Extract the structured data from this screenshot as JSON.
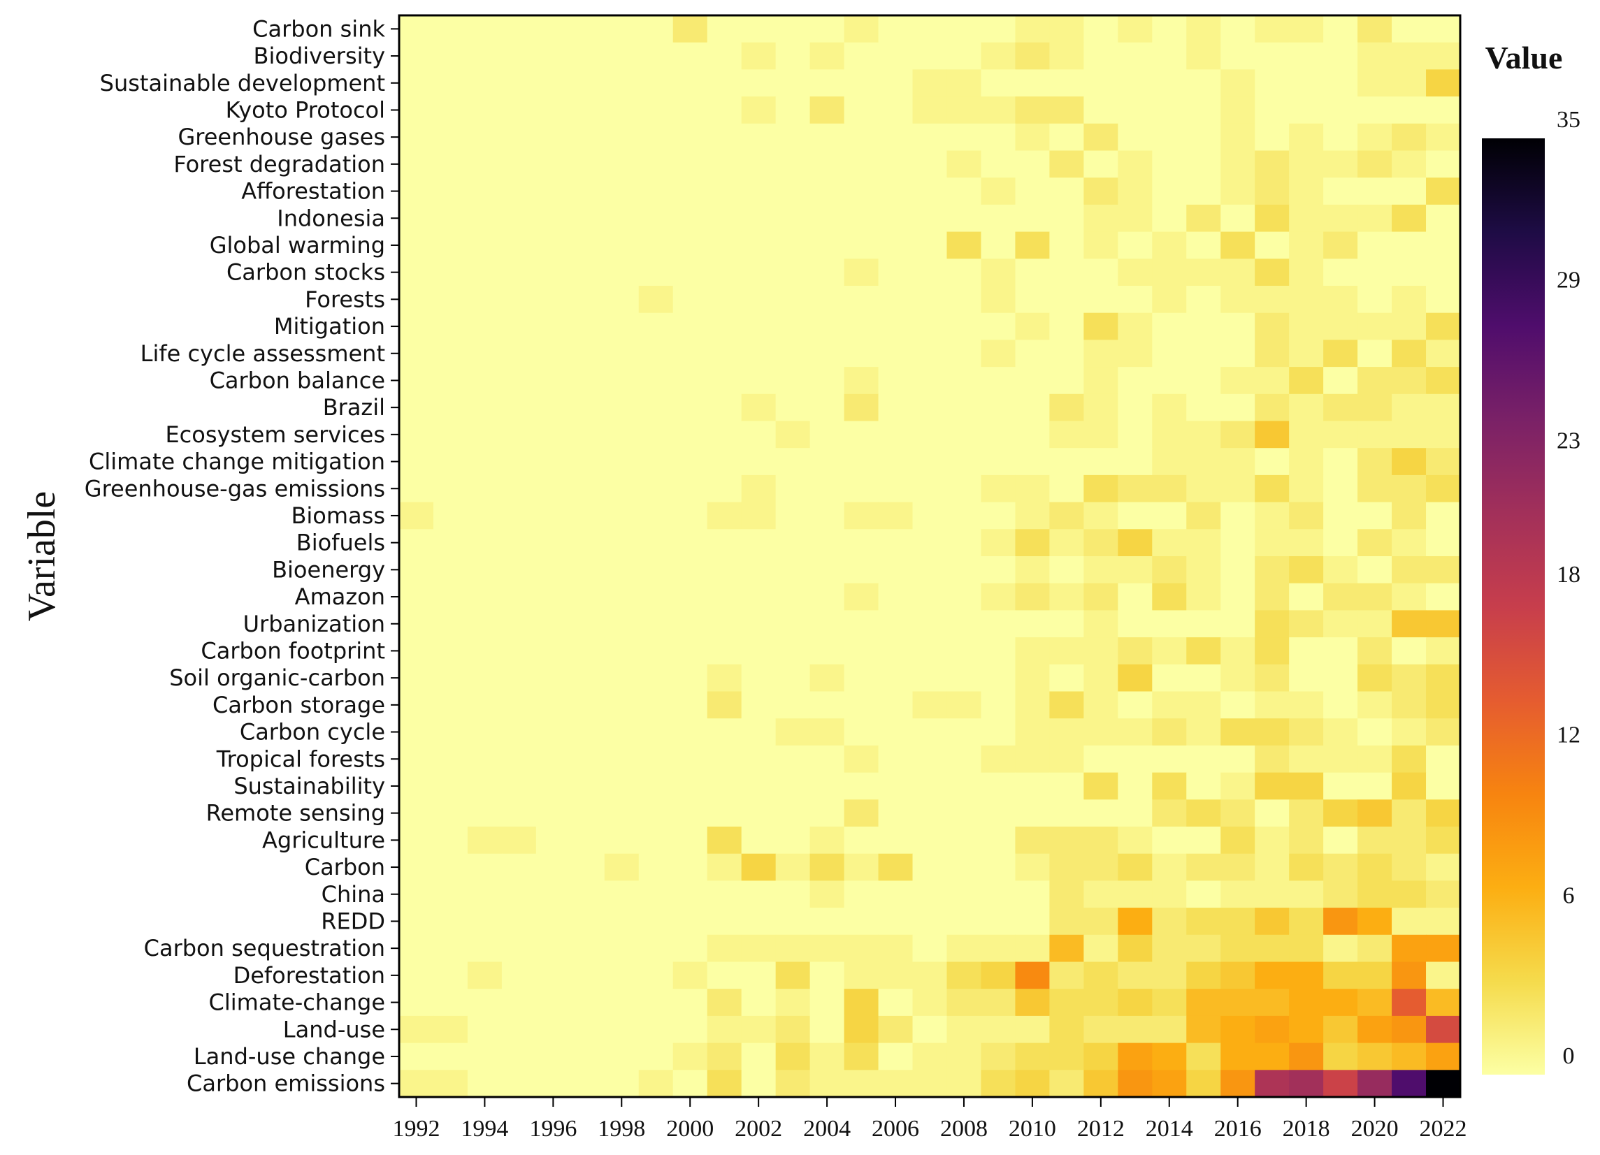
{
  "chart_data": {
    "type": "heatmap",
    "ylabel": "Variable",
    "xlabel": "",
    "x": [
      "1992",
      "1993",
      "1994",
      "1995",
      "1996",
      "1997",
      "1998",
      "1999",
      "2000",
      "2001",
      "2002",
      "2003",
      "2004",
      "2005",
      "2006",
      "2007",
      "2008",
      "2009",
      "2010",
      "2011",
      "2012",
      "2013",
      "2014",
      "2015",
      "2016",
      "2017",
      "2018",
      "2019",
      "2020",
      "2021",
      "2022"
    ],
    "x_tick_labels": [
      "1992",
      "1994",
      "1996",
      "1998",
      "2000",
      "2002",
      "2004",
      "2006",
      "2008",
      "2010",
      "2012",
      "2014",
      "2016",
      "2018",
      "2020",
      "2022"
    ],
    "y": [
      "Carbon sink",
      "Biodiversity",
      "Sustainable development",
      "Kyoto Protocol",
      "Greenhouse gases",
      "Forest degradation",
      "Afforestation",
      "Indonesia",
      "Global warming",
      "Carbon stocks",
      "Forests",
      "Mitigation",
      "Life cycle assessment",
      "Carbon balance",
      "Brazil",
      "Ecosystem services",
      "Climate change mitigation",
      "Greenhouse-gas emissions",
      "Biomass",
      "Biofuels",
      "Bioenergy",
      "Amazon",
      "Urbanization",
      "Carbon footprint",
      "Soil organic-carbon",
      "Carbon storage",
      "Carbon cycle",
      "Tropical forests",
      "Sustainability",
      "Remote sensing",
      "Agriculture",
      "Carbon",
      "China",
      "REDD",
      "Carbon sequestration",
      "Deforestation",
      "Climate-change",
      "Land-use",
      "Land-use change",
      "Carbon emissions"
    ],
    "values": [
      [
        0,
        0,
        0,
        0,
        0,
        0,
        0,
        0,
        2,
        0,
        0,
        0,
        0,
        1,
        0,
        0,
        0,
        0,
        1,
        1,
        0,
        1,
        0,
        1,
        0,
        1,
        1,
        0,
        2,
        0,
        0
      ],
      [
        0,
        0,
        0,
        0,
        0,
        0,
        0,
        0,
        0,
        0,
        1,
        0,
        1,
        0,
        0,
        0,
        0,
        1,
        2,
        1,
        0,
        0,
        0,
        1,
        0,
        0,
        0,
        0,
        1,
        1,
        1
      ],
      [
        0,
        0,
        0,
        0,
        0,
        0,
        0,
        0,
        0,
        0,
        0,
        0,
        0,
        0,
        0,
        1,
        1,
        0,
        0,
        0,
        0,
        0,
        0,
        0,
        1,
        0,
        0,
        0,
        1,
        1,
        4
      ],
      [
        0,
        0,
        0,
        0,
        0,
        0,
        0,
        0,
        0,
        0,
        1,
        0,
        2,
        0,
        0,
        1,
        1,
        1,
        2,
        2,
        0,
        0,
        0,
        0,
        1,
        0,
        0,
        0,
        0,
        0,
        0
      ],
      [
        0,
        0,
        0,
        0,
        0,
        0,
        0,
        0,
        0,
        0,
        0,
        0,
        0,
        0,
        0,
        0,
        0,
        0,
        1,
        0,
        2,
        0,
        0,
        0,
        1,
        0,
        1,
        0,
        1,
        2,
        1
      ],
      [
        0,
        0,
        0,
        0,
        0,
        0,
        0,
        0,
        0,
        0,
        0,
        0,
        0,
        0,
        0,
        0,
        1,
        0,
        0,
        2,
        0,
        1,
        0,
        0,
        1,
        2,
        1,
        1,
        2,
        1,
        0
      ],
      [
        0,
        0,
        0,
        0,
        0,
        0,
        0,
        0,
        0,
        0,
        0,
        0,
        0,
        0,
        0,
        0,
        0,
        1,
        0,
        0,
        2,
        1,
        0,
        0,
        1,
        2,
        1,
        0,
        0,
        0,
        3
      ],
      [
        0,
        0,
        0,
        0,
        0,
        0,
        0,
        0,
        0,
        0,
        0,
        0,
        0,
        0,
        0,
        0,
        0,
        0,
        0,
        0,
        1,
        1,
        0,
        2,
        0,
        3,
        1,
        1,
        1,
        3,
        0
      ],
      [
        0,
        0,
        0,
        0,
        0,
        0,
        0,
        0,
        0,
        0,
        0,
        0,
        0,
        0,
        0,
        0,
        3,
        0,
        3,
        0,
        1,
        0,
        1,
        0,
        3,
        0,
        1,
        2,
        0,
        0,
        0
      ],
      [
        0,
        0,
        0,
        0,
        0,
        0,
        0,
        0,
        0,
        0,
        0,
        0,
        0,
        1,
        0,
        0,
        0,
        1,
        0,
        0,
        0,
        1,
        1,
        1,
        1,
        3,
        1,
        0,
        0,
        0,
        0
      ],
      [
        0,
        0,
        0,
        0,
        0,
        0,
        0,
        1,
        0,
        0,
        0,
        0,
        0,
        0,
        0,
        0,
        0,
        1,
        0,
        0,
        0,
        0,
        1,
        0,
        1,
        1,
        1,
        1,
        0,
        1,
        0
      ],
      [
        0,
        0,
        0,
        0,
        0,
        0,
        0,
        0,
        0,
        0,
        0,
        0,
        0,
        0,
        0,
        0,
        0,
        0,
        1,
        0,
        3,
        1,
        0,
        0,
        0,
        2,
        1,
        1,
        1,
        1,
        3
      ],
      [
        0,
        0,
        0,
        0,
        0,
        0,
        0,
        0,
        0,
        0,
        0,
        0,
        0,
        0,
        0,
        0,
        0,
        1,
        0,
        0,
        1,
        1,
        0,
        0,
        0,
        2,
        1,
        3,
        0,
        3,
        1
      ],
      [
        0,
        0,
        0,
        0,
        0,
        0,
        0,
        0,
        0,
        0,
        0,
        0,
        0,
        1,
        0,
        0,
        0,
        0,
        0,
        0,
        1,
        0,
        0,
        0,
        1,
        1,
        3,
        0,
        2,
        2,
        3
      ],
      [
        0,
        0,
        0,
        0,
        0,
        0,
        0,
        0,
        0,
        0,
        1,
        0,
        0,
        2,
        0,
        0,
        0,
        0,
        0,
        2,
        1,
        0,
        1,
        0,
        0,
        2,
        1,
        2,
        2,
        1,
        1
      ],
      [
        0,
        0,
        0,
        0,
        0,
        0,
        0,
        0,
        0,
        0,
        0,
        1,
        0,
        0,
        0,
        0,
        0,
        0,
        0,
        1,
        1,
        0,
        1,
        1,
        2,
        5,
        1,
        1,
        1,
        1,
        1
      ],
      [
        0,
        0,
        0,
        0,
        0,
        0,
        0,
        0,
        0,
        0,
        0,
        0,
        0,
        0,
        0,
        0,
        0,
        0,
        0,
        0,
        0,
        0,
        1,
        1,
        1,
        0,
        1,
        0,
        2,
        4,
        2
      ],
      [
        0,
        0,
        0,
        0,
        0,
        0,
        0,
        0,
        0,
        0,
        1,
        0,
        0,
        0,
        0,
        0,
        0,
        1,
        1,
        0,
        3,
        2,
        2,
        1,
        1,
        3,
        1,
        0,
        2,
        2,
        3
      ],
      [
        1,
        0,
        0,
        0,
        0,
        0,
        0,
        0,
        0,
        1,
        1,
        0,
        0,
        1,
        1,
        0,
        0,
        0,
        1,
        2,
        1,
        0,
        0,
        2,
        0,
        1,
        2,
        0,
        0,
        2,
        0
      ],
      [
        0,
        0,
        0,
        0,
        0,
        0,
        0,
        0,
        0,
        0,
        0,
        0,
        0,
        0,
        0,
        0,
        0,
        1,
        3,
        1,
        2,
        4,
        1,
        1,
        0,
        1,
        1,
        0,
        2,
        1,
        0
      ],
      [
        0,
        0,
        0,
        0,
        0,
        0,
        0,
        0,
        0,
        0,
        0,
        0,
        0,
        0,
        0,
        0,
        0,
        0,
        1,
        0,
        1,
        1,
        2,
        1,
        0,
        2,
        3,
        1,
        0,
        2,
        2
      ],
      [
        0,
        0,
        0,
        0,
        0,
        0,
        0,
        0,
        0,
        0,
        0,
        0,
        0,
        1,
        0,
        0,
        0,
        1,
        2,
        1,
        2,
        0,
        3,
        1,
        0,
        2,
        0,
        2,
        2,
        1,
        0
      ],
      [
        0,
        0,
        0,
        0,
        0,
        0,
        0,
        0,
        0,
        0,
        0,
        0,
        0,
        0,
        0,
        0,
        0,
        0,
        0,
        0,
        1,
        0,
        0,
        0,
        0,
        3,
        2,
        1,
        1,
        5,
        5
      ],
      [
        0,
        0,
        0,
        0,
        0,
        0,
        0,
        0,
        0,
        0,
        0,
        0,
        0,
        0,
        0,
        0,
        0,
        0,
        1,
        1,
        1,
        2,
        1,
        3,
        1,
        3,
        0,
        0,
        2,
        0,
        1
      ],
      [
        0,
        0,
        0,
        0,
        0,
        0,
        0,
        0,
        0,
        1,
        0,
        0,
        1,
        0,
        0,
        0,
        0,
        0,
        1,
        0,
        1,
        4,
        0,
        0,
        1,
        2,
        0,
        0,
        3,
        2,
        3
      ],
      [
        0,
        0,
        0,
        0,
        0,
        0,
        0,
        0,
        0,
        2,
        0,
        0,
        0,
        0,
        0,
        1,
        1,
        0,
        1,
        3,
        1,
        0,
        1,
        1,
        0,
        1,
        1,
        0,
        1,
        2,
        3
      ],
      [
        0,
        0,
        0,
        0,
        0,
        0,
        0,
        0,
        0,
        0,
        0,
        1,
        1,
        0,
        0,
        0,
        0,
        0,
        1,
        1,
        1,
        1,
        2,
        1,
        3,
        3,
        2,
        1,
        0,
        1,
        2
      ],
      [
        0,
        0,
        0,
        0,
        0,
        0,
        0,
        0,
        0,
        0,
        0,
        0,
        0,
        1,
        0,
        0,
        0,
        1,
        1,
        1,
        0,
        0,
        0,
        0,
        0,
        2,
        1,
        1,
        1,
        3,
        0
      ],
      [
        0,
        0,
        0,
        0,
        0,
        0,
        0,
        0,
        0,
        0,
        0,
        0,
        0,
        0,
        0,
        0,
        0,
        0,
        0,
        0,
        3,
        0,
        3,
        0,
        1,
        4,
        4,
        0,
        0,
        4,
        0
      ],
      [
        0,
        0,
        0,
        0,
        0,
        0,
        0,
        0,
        0,
        0,
        0,
        0,
        0,
        2,
        0,
        0,
        0,
        0,
        0,
        0,
        0,
        0,
        2,
        3,
        2,
        0,
        2,
        4,
        5,
        2,
        4
      ],
      [
        0,
        0,
        1,
        1,
        0,
        0,
        0,
        0,
        0,
        3,
        0,
        0,
        1,
        0,
        0,
        0,
        0,
        0,
        2,
        2,
        2,
        1,
        0,
        0,
        3,
        1,
        2,
        0,
        2,
        2,
        3
      ],
      [
        0,
        0,
        0,
        0,
        0,
        0,
        1,
        0,
        0,
        1,
        4,
        1,
        3,
        1,
        3,
        0,
        0,
        0,
        1,
        2,
        2,
        3,
        1,
        2,
        2,
        1,
        3,
        2,
        3,
        2,
        1
      ],
      [
        0,
        0,
        0,
        0,
        0,
        0,
        0,
        0,
        0,
        0,
        0,
        0,
        1,
        0,
        0,
        0,
        0,
        0,
        0,
        2,
        1,
        1,
        1,
        0,
        1,
        1,
        1,
        2,
        3,
        3,
        2
      ],
      [
        0,
        0,
        0,
        0,
        0,
        0,
        0,
        0,
        0,
        0,
        0,
        0,
        0,
        0,
        0,
        0,
        0,
        0,
        0,
        2,
        2,
        7,
        2,
        3,
        3,
        5,
        3,
        9,
        7,
        1,
        1
      ],
      [
        0,
        0,
        0,
        0,
        0,
        0,
        0,
        0,
        0,
        1,
        1,
        1,
        1,
        1,
        1,
        0,
        1,
        1,
        1,
        6,
        1,
        4,
        2,
        2,
        3,
        3,
        3,
        1,
        2,
        8,
        8
      ],
      [
        0,
        0,
        1,
        0,
        0,
        0,
        0,
        0,
        1,
        0,
        0,
        3,
        0,
        1,
        1,
        1,
        3,
        4,
        10,
        2,
        3,
        2,
        2,
        4,
        5,
        7,
        7,
        4,
        4,
        9,
        1
      ],
      [
        0,
        0,
        0,
        0,
        0,
        0,
        0,
        0,
        0,
        2,
        0,
        1,
        0,
        4,
        0,
        1,
        2,
        2,
        5,
        3,
        3,
        4,
        3,
        6,
        6,
        6,
        7,
        7,
        6,
        14,
        6
      ],
      [
        1,
        1,
        0,
        0,
        0,
        0,
        0,
        0,
        0,
        1,
        1,
        2,
        0,
        4,
        2,
        0,
        1,
        1,
        1,
        3,
        2,
        2,
        2,
        6,
        7,
        8,
        7,
        5,
        8,
        9,
        16
      ],
      [
        0,
        0,
        0,
        0,
        0,
        0,
        0,
        0,
        1,
        2,
        0,
        3,
        1,
        3,
        0,
        1,
        1,
        2,
        3,
        3,
        4,
        8,
        7,
        3,
        7,
        7,
        9,
        4,
        5,
        6,
        8
      ],
      [
        1,
        1,
        0,
        0,
        0,
        0,
        0,
        1,
        0,
        3,
        0,
        2,
        1,
        1,
        1,
        1,
        1,
        3,
        4,
        2,
        5,
        9,
        8,
        4,
        9,
        20,
        21,
        17,
        22,
        28,
        35
      ]
    ],
    "colorbar": {
      "title": "Value",
      "min": 0,
      "max": 35,
      "ticks": [
        "0",
        "6",
        "12",
        "18",
        "23",
        "29",
        "35"
      ],
      "colormap": "inferno (reversed)"
    },
    "grid": false,
    "legend_position": "right"
  },
  "colors": {
    "low": "#fcffa4",
    "high": "#000004"
  }
}
